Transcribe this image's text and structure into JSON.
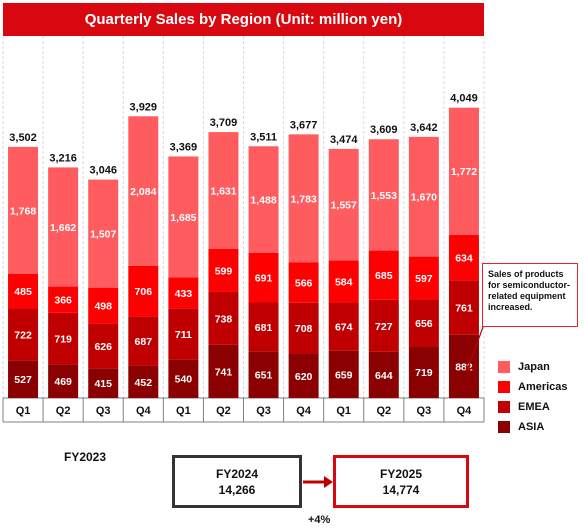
{
  "title": "Quarterly Sales by Region (Unit: million yen)",
  "colors": {
    "japan": "#ff5c5f",
    "americas": "#ff0000",
    "emea": "#c00000",
    "asia": "#8b0000",
    "title_bg": "#d9070f",
    "box_dark": "#333333",
    "box_red": "#d9070f",
    "arrow": "#c00000"
  },
  "chart_data": {
    "type": "bar",
    "stacked": true,
    "categories": [
      "Q1",
      "Q2",
      "Q3",
      "Q4",
      "Q1",
      "Q2",
      "Q3",
      "Q4",
      "Q1",
      "Q2",
      "Q3",
      "Q4"
    ],
    "groups": [
      {
        "label": "FY2023",
        "start": 0,
        "end": 3
      },
      {
        "label": "",
        "start": 4,
        "end": 7
      },
      {
        "label": "",
        "start": 8,
        "end": 11
      }
    ],
    "series": [
      {
        "name": "ASIA",
        "values": [
          527,
          469,
          415,
          452,
          540,
          741,
          651,
          620,
          659,
          644,
          719,
          882
        ]
      },
      {
        "name": "EMEA",
        "values": [
          722,
          719,
          626,
          687,
          711,
          738,
          681,
          708,
          674,
          727,
          656,
          761
        ]
      },
      {
        "name": "Americas",
        "values": [
          485,
          366,
          498,
          706,
          433,
          599,
          691,
          566,
          584,
          685,
          597,
          634
        ]
      },
      {
        "name": "Japan",
        "values": [
          1768,
          1662,
          1507,
          2084,
          1685,
          1631,
          1488,
          1783,
          1557,
          1553,
          1670,
          1772
        ]
      }
    ],
    "totals": [
      3502,
      3216,
      3046,
      3929,
      3369,
      3709,
      3511,
      3677,
      3474,
      3609,
      3642,
      4049
    ],
    "legend": [
      "Japan",
      "Americas",
      "EMEA",
      "ASIA"
    ],
    "legend_position": "right"
  },
  "callout": "Sales of products for semiconductor-related equipment increased.",
  "fy_boxes": [
    {
      "label": "FY2024",
      "value": "14,266"
    },
    {
      "label": "FY2025",
      "value": "14,774"
    }
  ],
  "growth": "+4%"
}
